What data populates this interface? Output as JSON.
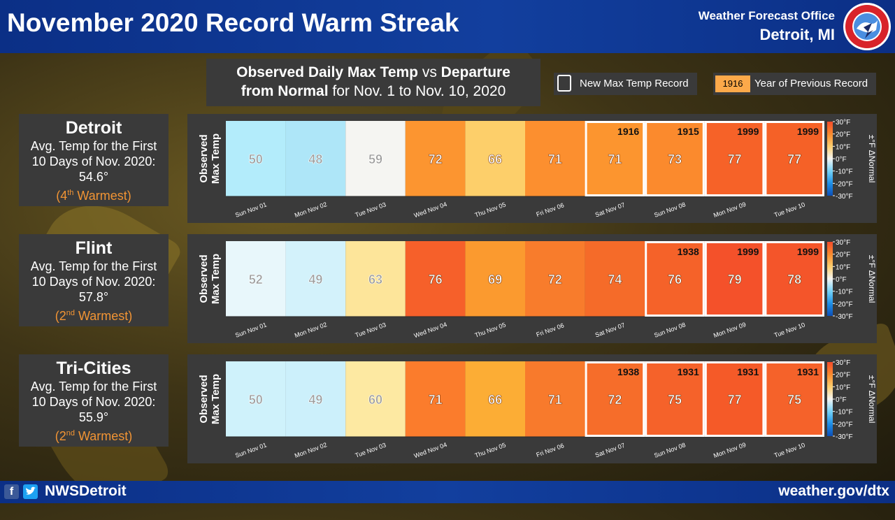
{
  "header": {
    "title": "November 2020 Record Warm Streak",
    "office_line1": "Weather Forecast Office",
    "office_line2": "Detroit, MI",
    "logo_icon": "nws-logo-icon"
  },
  "subtitle": {
    "line1_bold_a": "Observed Daily Max Temp",
    "line1_mid": " vs ",
    "line1_bold_b": "Departure",
    "line2_bold": "from Normal",
    "line2_rest": " for Nov. 1 to Nov. 10, 2020"
  },
  "legend": {
    "new_record": "New Max Temp Record",
    "year_chip": "1916",
    "year_label": "Year of Previous Record"
  },
  "footer": {
    "facebook_icon": "facebook-icon",
    "twitter_icon": "twitter-icon",
    "handle": "NWSDetroit",
    "site": "weather.gov/dtx"
  },
  "colors": {
    "header_blue": "#0b2f86",
    "panel_bg": "#3a3a3a",
    "rank_orange": "#f19434",
    "record_border": "#ffffff"
  },
  "cities": [
    {
      "name": "Detroit",
      "line1": "Avg. Temp for the First",
      "line2": "10 Days of Nov. 2020:",
      "avg": "54.6°",
      "rank_num": "4",
      "rank_sup": "th",
      "rank_text": " Warmest"
    },
    {
      "name": "Flint",
      "line1": "Avg. Temp for the First",
      "line2": "10 Days of Nov. 2020:",
      "avg": "57.8°",
      "rank_num": "2",
      "rank_sup": "nd",
      "rank_text": " Warmest"
    },
    {
      "name": "Tri-Cities",
      "line1": "Avg. Temp for the First",
      "line2": "10 Days of Nov. 2020:",
      "avg": "55.9°",
      "rank_num": "2",
      "rank_sup": "nd",
      "rank_text": " Warmest"
    }
  ],
  "chart_data": [
    {
      "type": "heatmap",
      "ylabel": "Observed Max Temp",
      "colorbar_label": "±°F ΔNormal",
      "categories": [
        "Sun Nov 01",
        "Mon Nov 02",
        "Tue Nov 03",
        "Wed Nov 04",
        "Thu Nov 05",
        "Fri Nov 06",
        "Sat Nov 07",
        "Sun Nov 08",
        "Mon Nov 09",
        "Tue Nov 10"
      ],
      "values": [
        50,
        48,
        59,
        72,
        66,
        71,
        71,
        73,
        77,
        77
      ],
      "departure_colors": [
        "#b3ecfb",
        "#aee6f8",
        "#f5f5f2",
        "#fc9530",
        "#fdcf6a",
        "#fc8f2f",
        "#fc952f",
        "#fb8a2d",
        "#f66228",
        "#f56127"
      ],
      "records": [
        false,
        false,
        false,
        false,
        false,
        false,
        true,
        true,
        true,
        true
      ],
      "previous_record_years": [
        "",
        "",
        "",
        "",
        "",
        "",
        "1916",
        "1915",
        "1999",
        "1999"
      ]
    },
    {
      "type": "heatmap",
      "ylabel": "Observed Max Temp",
      "colorbar_label": "±°F ΔNormal",
      "categories": [
        "Sun Nov 01",
        "Mon Nov 02",
        "Tue Nov 03",
        "Wed Nov 04",
        "Thu Nov 05",
        "Fri Nov 06",
        "Sat Nov 07",
        "Sun Nov 08",
        "Mon Nov 09",
        "Tue Nov 10"
      ],
      "values": [
        52,
        49,
        63,
        76,
        69,
        72,
        74,
        76,
        79,
        78
      ],
      "departure_colors": [
        "#e8f7fb",
        "#d3f2fb",
        "#fde59a",
        "#f6602a",
        "#fb9a2f",
        "#f87c2c",
        "#f56b29",
        "#f56229",
        "#f4512a",
        "#f4552a"
      ],
      "records": [
        false,
        false,
        false,
        false,
        false,
        false,
        false,
        true,
        true,
        true
      ],
      "previous_record_years": [
        "",
        "",
        "",
        "",
        "",
        "",
        "",
        "1938",
        "1999",
        "1999"
      ]
    },
    {
      "type": "heatmap",
      "ylabel": "Observed Max Temp",
      "colorbar_label": "±°F ΔNormal",
      "categories": [
        "Sun Nov 01",
        "Mon Nov 02",
        "Tue Nov 03",
        "Wed Nov 04",
        "Thu Nov 05",
        "Fri Nov 06",
        "Sat Nov 07",
        "Sun Nov 08",
        "Mon Nov 09",
        "Tue Nov 10"
      ],
      "values": [
        50,
        49,
        60,
        71,
        66,
        71,
        72,
        75,
        77,
        75
      ],
      "departure_colors": [
        "#cff2fb",
        "#ccf0fb",
        "#fde9a2",
        "#fb7c2c",
        "#fcad35",
        "#f87a2c",
        "#f66d2a",
        "#f5622a",
        "#f55a28",
        "#f5622a"
      ],
      "records": [
        false,
        false,
        false,
        false,
        false,
        false,
        true,
        true,
        true,
        true
      ],
      "previous_record_years": [
        "",
        "",
        "",
        "",
        "",
        "",
        "1938",
        "1931",
        "1931",
        "1931"
      ]
    }
  ],
  "colorbar": {
    "ticks": [
      "30°F",
      "20°F",
      "10°F",
      "0°F",
      "-10°F",
      "-20°F",
      "-30°F"
    ],
    "stops": [
      "#f44b2a",
      "#f98a2d",
      "#fdce6e",
      "#f5f5f2",
      "#75d2f7",
      "#1e8fe6",
      "#0d4fb8"
    ]
  }
}
